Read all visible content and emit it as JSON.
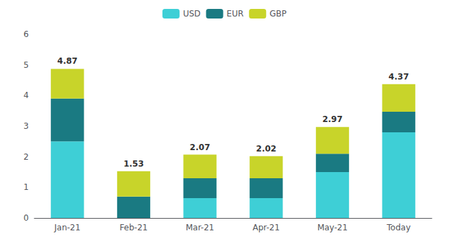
{
  "chart_data": {
    "type": "bar",
    "stacked": true,
    "categories": [
      "Jan-21",
      "Feb-21",
      "Mar-21",
      "Apr-21",
      "May-21",
      "Today"
    ],
    "series": [
      {
        "name": "USD",
        "color": "#3ECFD6",
        "values": [
          2.5,
          0.0,
          0.65,
          0.65,
          1.5,
          2.8
        ]
      },
      {
        "name": "EUR",
        "color": "#1A7A82",
        "values": [
          1.4,
          0.7,
          0.65,
          0.65,
          0.6,
          0.67
        ]
      },
      {
        "name": "GBP",
        "color": "#C8D42A",
        "values": [
          0.97,
          0.83,
          0.77,
          0.72,
          0.87,
          0.9
        ]
      }
    ],
    "totals": [
      4.87,
      1.53,
      2.07,
      2.02,
      2.97,
      4.37
    ],
    "ylim": [
      0,
      6
    ],
    "yticks": [
      0,
      1,
      2,
      3,
      4,
      5,
      6
    ],
    "grid": false,
    "legend": "top"
  }
}
